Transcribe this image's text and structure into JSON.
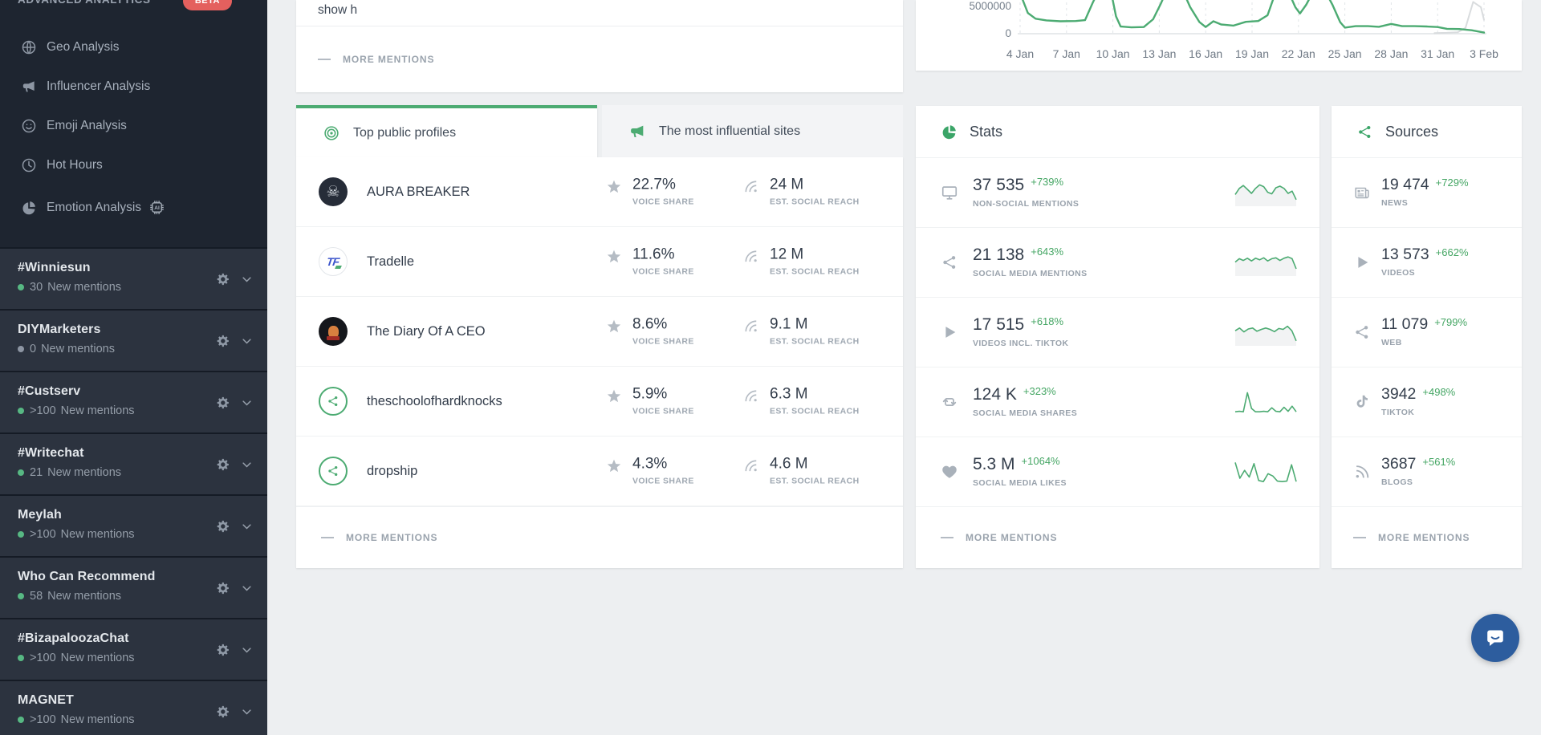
{
  "colors": {
    "green": "#4cab72",
    "green_change": "#45a664",
    "green_dot": "#57b883",
    "gray_dot": "#8d96a3",
    "spark_fill": "#f2f3f4",
    "chat_blue": "#2d5d9e",
    "beta_red": "#e4605e"
  },
  "sidebar": {
    "section_label": "ADVANCED ANALYTICS",
    "beta_badge": "BETA",
    "menu": [
      {
        "label": "Geo Analysis",
        "icon": "globe-icon"
      },
      {
        "label": "Influencer Analysis",
        "icon": "megaphone-icon"
      },
      {
        "label": "Emoji Analysis",
        "icon": "smiley-icon"
      },
      {
        "label": "Hot Hours",
        "icon": "clock-icon"
      },
      {
        "label": "Emotion Analysis",
        "icon": "pie-chart-icon",
        "badge": "AI"
      }
    ],
    "projects": [
      {
        "name": "#Winniesun",
        "count": "30",
        "suffix": "New mentions",
        "dot": "green"
      },
      {
        "name": "DIYMarketers",
        "count": "0",
        "suffix": "New mentions",
        "dot": "gray"
      },
      {
        "name": "#Custserv",
        "count": ">100",
        "suffix": "New mentions",
        "dot": "green"
      },
      {
        "name": "#Writechat",
        "count": "21",
        "suffix": "New mentions",
        "dot": "green"
      },
      {
        "name": "Meylah",
        "count": ">100",
        "suffix": "New mentions",
        "dot": "green"
      },
      {
        "name": "Who Can Recommend",
        "count": "58",
        "suffix": "New mentions",
        "dot": "green"
      },
      {
        "name": "#BizapaloozaChat",
        "count": ">100",
        "suffix": "New mentions",
        "dot": "green"
      },
      {
        "name": "MAGNET",
        "count": ">100",
        "suffix": "New mentions",
        "dot": "green"
      }
    ]
  },
  "top_left_card": {
    "truncated_text": "show h",
    "more_label": "MORE MENTIONS"
  },
  "tabs": {
    "active": "Top public profiles",
    "inactive": "The most influential sites"
  },
  "profiles": {
    "voice_share_label": "VOICE SHARE",
    "reach_label": "EST. SOCIAL REACH",
    "more_label": "MORE MENTIONS",
    "rows": [
      {
        "name": "AURA BREAKER",
        "voice_share": "22.7%",
        "reach": "24 M"
      },
      {
        "name": "Tradelle",
        "voice_share": "11.6%",
        "reach": "12 M"
      },
      {
        "name": "The Diary Of A CEO",
        "voice_share": "8.6%",
        "reach": "9.1 M"
      },
      {
        "name": "theschoolofhardknocks",
        "voice_share": "5.9%",
        "reach": "6.3 M"
      },
      {
        "name": "dropship",
        "voice_share": "4.3%",
        "reach": "4.6 M"
      }
    ]
  },
  "stats": {
    "title": "Stats",
    "more_label": "MORE MENTIONS",
    "rows": [
      {
        "icon": "monitor-icon",
        "value": "37 535",
        "change": "+739%",
        "label": "NON-SOCIAL MENTIONS",
        "sparkline": [
          0.45,
          0.72,
          0.85,
          0.68,
          0.5,
          0.72,
          0.88,
          0.8,
          0.55,
          0.48,
          0.75,
          0.82,
          0.72,
          0.5,
          0.6,
          0.22
        ],
        "sparkline_fill": true
      },
      {
        "icon": "share-icon",
        "value": "21 138",
        "change": "+643%",
        "label": "SOCIAL MEDIA MENTIONS",
        "sparkline": [
          0.55,
          0.7,
          0.62,
          0.72,
          0.6,
          0.72,
          0.65,
          0.74,
          0.6,
          0.7,
          0.74,
          0.62,
          0.72,
          0.78,
          0.7,
          0.25
        ],
        "sparkline_fill": true
      },
      {
        "icon": "play-icon",
        "value": "17 515",
        "change": "+618%",
        "label": "VIDEOS INCL. TIKTOK",
        "sparkline": [
          0.6,
          0.72,
          0.55,
          0.68,
          0.72,
          0.58,
          0.66,
          0.72,
          0.66,
          0.56,
          0.7,
          0.66,
          0.8,
          0.6,
          0.15
        ],
        "sparkline_fill": true
      },
      {
        "icon": "retweet-icon",
        "value": "124 K",
        "change": "+323%",
        "label": "SOCIAL MEDIA SHARES",
        "sparkline": [
          0.1,
          0.12,
          0.1,
          0.95,
          0.25,
          0.1,
          0.1,
          0.12,
          0.1,
          0.28,
          0.12,
          0.1,
          0.3,
          0.12,
          0.35,
          0.1
        ],
        "sparkline_fill": false
      },
      {
        "icon": "heart-icon",
        "value": "5.3 M",
        "change": "+1064%",
        "label": "SOCIAL MEDIA LIKES",
        "sparkline": [
          0.95,
          0.25,
          0.6,
          0.3,
          0.9,
          0.15,
          0.1,
          0.45,
          0.35,
          0.12,
          0.1,
          0.12,
          0.85,
          0.1
        ],
        "sparkline_fill": false
      }
    ]
  },
  "sources": {
    "title": "Sources",
    "more_label": "MORE MENTIONS",
    "rows": [
      {
        "icon": "newspaper-icon",
        "value": "19 474",
        "change": "+729%",
        "label": "NEWS"
      },
      {
        "icon": "play-icon",
        "value": "13 573",
        "change": "+662%",
        "label": "VIDEOS"
      },
      {
        "icon": "share-icon",
        "value": "11 079",
        "change": "+799%",
        "label": "WEB"
      },
      {
        "icon": "tiktok-icon",
        "value": "3942",
        "change": "+498%",
        "label": "TIKTOK"
      },
      {
        "icon": "rss-icon",
        "value": "3687",
        "change": "+561%",
        "label": "BLOGS"
      }
    ]
  },
  "chart_data": {
    "type": "line",
    "x_tick_labels": [
      "4 Jan",
      "7 Jan",
      "10 Jan",
      "13 Jan",
      "16 Jan",
      "19 Jan",
      "22 Jan",
      "25 Jan",
      "28 Jan",
      "31 Jan",
      "3 Feb"
    ],
    "y_tick_labels": [
      "5000000",
      "0"
    ],
    "ylim": [
      0,
      5000000
    ],
    "x_domain_days": [
      0,
      30
    ],
    "grid": "vertical-dashed",
    "units": "millions",
    "series": [
      {
        "name": "secondary",
        "color": "#d9dcde",
        "points": [
          [
            26.8,
            0.1
          ],
          [
            27.6,
            0.15
          ],
          [
            28.3,
            0.25
          ],
          [
            28.8,
            1.0
          ],
          [
            29.3,
            5.5
          ],
          [
            29.8,
            4.6
          ],
          [
            30,
            2.4
          ]
        ]
      },
      {
        "name": "mentions",
        "color": "#4cab72",
        "points": [
          [
            0,
            7
          ],
          [
            0.5,
            3.6
          ],
          [
            1,
            2.6
          ],
          [
            1.7,
            2.3
          ],
          [
            2.6,
            2.15
          ],
          [
            3.6,
            2.2
          ],
          [
            4.2,
            2.35
          ],
          [
            4.7,
            5.4
          ],
          [
            5,
            7
          ],
          [
            5.9,
            7
          ],
          [
            6.2,
            3
          ],
          [
            6.5,
            1.25
          ],
          [
            7.2,
            1.1
          ],
          [
            8,
            1.15
          ],
          [
            8.6,
            2.5
          ],
          [
            9.1,
            5.2
          ],
          [
            9.4,
            7
          ],
          [
            10.6,
            7
          ],
          [
            11,
            4.6
          ],
          [
            11.6,
            2
          ],
          [
            12,
            1.15
          ],
          [
            12.5,
            2.15
          ],
          [
            13,
            1.6
          ],
          [
            13.8,
            1.4
          ],
          [
            14.6,
            2.05
          ],
          [
            15.4,
            2.2
          ],
          [
            16,
            3.2
          ],
          [
            16.5,
            7
          ],
          [
            17.4,
            7
          ],
          [
            17.8,
            4.6
          ],
          [
            18.1,
            3.5
          ],
          [
            18.5,
            5
          ],
          [
            18.9,
            7
          ],
          [
            19.8,
            7
          ],
          [
            20.2,
            5
          ],
          [
            20.7,
            2
          ],
          [
            21,
            1.05
          ],
          [
            21.7,
            1.3
          ],
          [
            22.5,
            1.3
          ],
          [
            23.2,
            1.2
          ],
          [
            24,
            1.7
          ],
          [
            24.7,
            1.3
          ],
          [
            25.5,
            1.3
          ],
          [
            26.3,
            1.25
          ],
          [
            27,
            1.15
          ],
          [
            27.6,
            0.85
          ],
          [
            28.4,
            0.8
          ],
          [
            29.2,
            0.6
          ],
          [
            30,
            0.2
          ]
        ]
      }
    ]
  }
}
